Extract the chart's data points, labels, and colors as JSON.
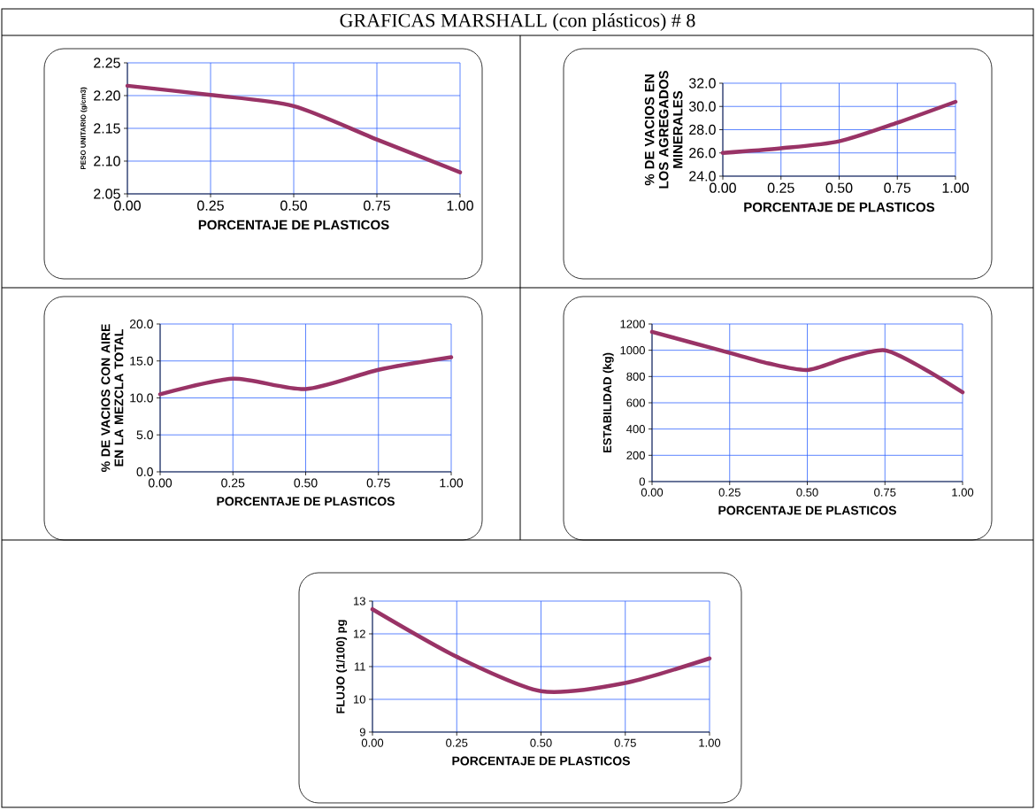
{
  "chart_data": [
    {
      "type": "line",
      "title": "GRAFICAS MARSHALL (con plásticos) # 8",
      "xlabel": "PORCENTAJE DE PLASTICOS",
      "ylabel": "PESO UNITARIO (g/cm3)",
      "x": [
        0,
        0.25,
        0.5,
        0.75,
        1.0
      ],
      "series": [
        {
          "color": "#993366",
          "values": [
            2.215,
            2.201,
            2.184,
            2.133,
            2.083
          ]
        }
      ],
      "xlim": [
        0,
        1
      ],
      "xticks": [
        {
          "value": 0,
          "label": "0.00"
        },
        {
          "value": 0.25,
          "label": "0.25"
        },
        {
          "value": 0.5,
          "label": "0.50"
        },
        {
          "value": 0.75,
          "label": "0.75"
        },
        {
          "value": 1,
          "label": "1.00"
        }
      ],
      "ylim": [
        2.05,
        2.25
      ],
      "yticks": [
        2.05,
        {
          "value": 2.1,
          "label": "2.10"
        },
        2.15,
        {
          "value": 2.2,
          "label": "2.20"
        },
        2.25
      ],
      "grid": true
    },
    {
      "type": "line",
      "xlabel": "PORCENTAJE DE PLASTICOS",
      "ylabel": "% DE VACIOS EN LOS AGREGADOS MINERALES",
      "x": [
        0,
        0.25,
        0.5,
        0.75,
        1.0
      ],
      "series": [
        {
          "color": "#993366",
          "values": [
            26.0,
            26.4,
            27.0,
            28.6,
            30.4
          ]
        }
      ],
      "xlim": [
        0,
        1
      ],
      "xticks": [
        {
          "value": 0,
          "label": "0.00"
        },
        {
          "value": 0.25,
          "label": "0.25"
        },
        {
          "value": 0.5,
          "label": "0.50"
        },
        {
          "value": 0.75,
          "label": "0.75"
        },
        {
          "value": 1,
          "label": "1.00"
        }
      ],
      "ylim": [
        24,
        32
      ],
      "yticks": [
        {
          "value": 24,
          "label": "24.0"
        },
        {
          "value": 26,
          "label": "26.0"
        },
        {
          "value": 28,
          "label": "28.0"
        },
        {
          "value": 30,
          "label": "30.0"
        },
        {
          "value": 32,
          "label": "32.0"
        }
      ],
      "grid": true
    },
    {
      "type": "line",
      "xlabel": "PORCENTAJE DE PLASTICOS",
      "ylabel": "% DE VACIOS CON AIRE EN LA MEZCLA TOTAL",
      "x": [
        0,
        0.25,
        0.5,
        0.75,
        1.0
      ],
      "series": [
        {
          "color": "#993366",
          "values": [
            10.5,
            12.6,
            11.2,
            13.8,
            15.5
          ]
        }
      ],
      "xlim": [
        0,
        1
      ],
      "xticks": [
        {
          "value": 0,
          "label": "0.00"
        },
        {
          "value": 0.25,
          "label": "0.25"
        },
        {
          "value": 0.5,
          "label": "0.50"
        },
        {
          "value": 0.75,
          "label": "0.75"
        },
        {
          "value": 1,
          "label": "1.00"
        }
      ],
      "ylim": [
        0,
        20
      ],
      "yticks": [
        {
          "value": 0,
          "label": "0.0"
        },
        {
          "value": 5,
          "label": "5.0"
        },
        {
          "value": 10,
          "label": "10.0"
        },
        {
          "value": 15,
          "label": "15.0"
        },
        {
          "value": 20,
          "label": "20.0"
        }
      ],
      "grid": true
    },
    {
      "type": "line",
      "xlabel": "PORCENTAJE DE PLASTICOS",
      "ylabel": "ESTABILIDAD (kg)",
      "x": [
        0,
        0.125,
        0.25,
        0.375,
        0.5,
        0.625,
        0.75,
        0.875,
        1.0
      ],
      "series": [
        {
          "color": "#993366",
          "values": [
            1140,
            1060,
            980,
            900,
            850,
            940,
            1000,
            860,
            680
          ]
        }
      ],
      "xlim": [
        0,
        1
      ],
      "xticks": [
        {
          "value": 0,
          "label": "0.00"
        },
        {
          "value": 0.25,
          "label": "0.25"
        },
        {
          "value": 0.5,
          "label": "0.50"
        },
        {
          "value": 0.75,
          "label": "0.75"
        },
        {
          "value": 1,
          "label": "1.00"
        }
      ],
      "ylim": [
        0,
        1200
      ],
      "yticks": [
        0,
        200,
        400,
        600,
        800,
        1000,
        1200
      ],
      "grid": true
    },
    {
      "type": "line",
      "xlabel": "PORCENTAJE DE PLASTICOS",
      "ylabel": "FLUJO (1/100) pg",
      "x": [
        0,
        0.25,
        0.5,
        0.75,
        1.0
      ],
      "series": [
        {
          "color": "#993366",
          "values": [
            12.75,
            11.3,
            10.25,
            10.5,
            11.25
          ]
        }
      ],
      "xlim": [
        0,
        1
      ],
      "xticks": [
        {
          "value": 0,
          "label": "0.00"
        },
        {
          "value": 0.25,
          "label": "0.25"
        },
        {
          "value": 0.5,
          "label": "0.50"
        },
        {
          "value": 0.75,
          "label": "0.75"
        },
        {
          "value": 1,
          "label": "1.00"
        }
      ],
      "ylim": [
        9,
        13
      ],
      "yticks": [
        9,
        10,
        11,
        12,
        13
      ],
      "grid": true
    }
  ]
}
